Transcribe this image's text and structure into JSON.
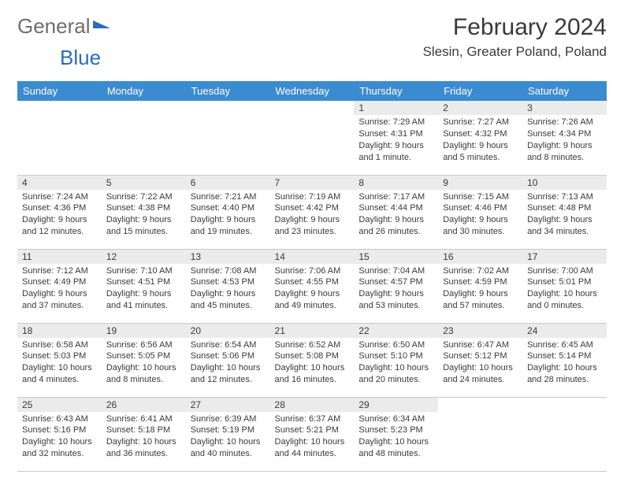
{
  "logo": {
    "text1": "General",
    "text2": "Blue"
  },
  "title": "February 2024",
  "location": "Slesin, Greater Poland, Poland",
  "colors": {
    "header_bg": "#3b8bd0",
    "header_text": "#ffffff",
    "daynum_bg": "#ebebeb",
    "text": "#3a3a3a",
    "logo_gray": "#6e6e6e",
    "logo_blue": "#2b6bbf"
  },
  "weekdays": [
    "Sunday",
    "Monday",
    "Tuesday",
    "Wednesday",
    "Thursday",
    "Friday",
    "Saturday"
  ],
  "first_day_index": 4,
  "days": [
    {
      "n": "1",
      "sunrise": "7:29 AM",
      "sunset": "4:31 PM",
      "daylight": "9 hours and 1 minute."
    },
    {
      "n": "2",
      "sunrise": "7:27 AM",
      "sunset": "4:32 PM",
      "daylight": "9 hours and 5 minutes."
    },
    {
      "n": "3",
      "sunrise": "7:26 AM",
      "sunset": "4:34 PM",
      "daylight": "9 hours and 8 minutes."
    },
    {
      "n": "4",
      "sunrise": "7:24 AM",
      "sunset": "4:36 PM",
      "daylight": "9 hours and 12 minutes."
    },
    {
      "n": "5",
      "sunrise": "7:22 AM",
      "sunset": "4:38 PM",
      "daylight": "9 hours and 15 minutes."
    },
    {
      "n": "6",
      "sunrise": "7:21 AM",
      "sunset": "4:40 PM",
      "daylight": "9 hours and 19 minutes."
    },
    {
      "n": "7",
      "sunrise": "7:19 AM",
      "sunset": "4:42 PM",
      "daylight": "9 hours and 23 minutes."
    },
    {
      "n": "8",
      "sunrise": "7:17 AM",
      "sunset": "4:44 PM",
      "daylight": "9 hours and 26 minutes."
    },
    {
      "n": "9",
      "sunrise": "7:15 AM",
      "sunset": "4:46 PM",
      "daylight": "9 hours and 30 minutes."
    },
    {
      "n": "10",
      "sunrise": "7:13 AM",
      "sunset": "4:48 PM",
      "daylight": "9 hours and 34 minutes."
    },
    {
      "n": "11",
      "sunrise": "7:12 AM",
      "sunset": "4:49 PM",
      "daylight": "9 hours and 37 minutes."
    },
    {
      "n": "12",
      "sunrise": "7:10 AM",
      "sunset": "4:51 PM",
      "daylight": "9 hours and 41 minutes."
    },
    {
      "n": "13",
      "sunrise": "7:08 AM",
      "sunset": "4:53 PM",
      "daylight": "9 hours and 45 minutes."
    },
    {
      "n": "14",
      "sunrise": "7:06 AM",
      "sunset": "4:55 PM",
      "daylight": "9 hours and 49 minutes."
    },
    {
      "n": "15",
      "sunrise": "7:04 AM",
      "sunset": "4:57 PM",
      "daylight": "9 hours and 53 minutes."
    },
    {
      "n": "16",
      "sunrise": "7:02 AM",
      "sunset": "4:59 PM",
      "daylight": "9 hours and 57 minutes."
    },
    {
      "n": "17",
      "sunrise": "7:00 AM",
      "sunset": "5:01 PM",
      "daylight": "10 hours and 0 minutes."
    },
    {
      "n": "18",
      "sunrise": "6:58 AM",
      "sunset": "5:03 PM",
      "daylight": "10 hours and 4 minutes."
    },
    {
      "n": "19",
      "sunrise": "6:56 AM",
      "sunset": "5:05 PM",
      "daylight": "10 hours and 8 minutes."
    },
    {
      "n": "20",
      "sunrise": "6:54 AM",
      "sunset": "5:06 PM",
      "daylight": "10 hours and 12 minutes."
    },
    {
      "n": "21",
      "sunrise": "6:52 AM",
      "sunset": "5:08 PM",
      "daylight": "10 hours and 16 minutes."
    },
    {
      "n": "22",
      "sunrise": "6:50 AM",
      "sunset": "5:10 PM",
      "daylight": "10 hours and 20 minutes."
    },
    {
      "n": "23",
      "sunrise": "6:47 AM",
      "sunset": "5:12 PM",
      "daylight": "10 hours and 24 minutes."
    },
    {
      "n": "24",
      "sunrise": "6:45 AM",
      "sunset": "5:14 PM",
      "daylight": "10 hours and 28 minutes."
    },
    {
      "n": "25",
      "sunrise": "6:43 AM",
      "sunset": "5:16 PM",
      "daylight": "10 hours and 32 minutes."
    },
    {
      "n": "26",
      "sunrise": "6:41 AM",
      "sunset": "5:18 PM",
      "daylight": "10 hours and 36 minutes."
    },
    {
      "n": "27",
      "sunrise": "6:39 AM",
      "sunset": "5:19 PM",
      "daylight": "10 hours and 40 minutes."
    },
    {
      "n": "28",
      "sunrise": "6:37 AM",
      "sunset": "5:21 PM",
      "daylight": "10 hours and 44 minutes."
    },
    {
      "n": "29",
      "sunrise": "6:34 AM",
      "sunset": "5:23 PM",
      "daylight": "10 hours and 48 minutes."
    }
  ],
  "labels": {
    "sunrise": "Sunrise: ",
    "sunset": "Sunset: ",
    "daylight": "Daylight: "
  }
}
